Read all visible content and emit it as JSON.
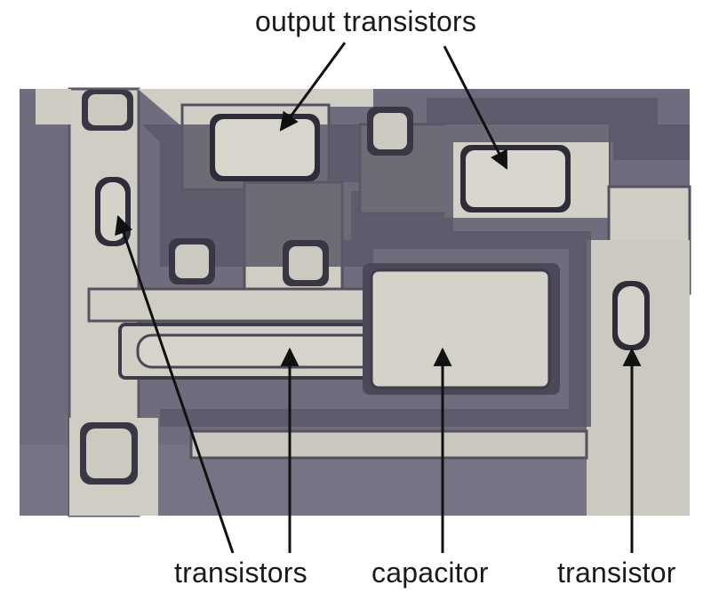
{
  "labels": {
    "output_transistors": "output transistors",
    "transistors": "transistors",
    "capacitor": "capacitor",
    "transistor": "transistor"
  },
  "colors": {
    "substrate": "#6e6b7c",
    "metal": "#cfcdc4",
    "metal_edge": "#45424f",
    "contact_dark": "#3b3846",
    "arrow": "#111111"
  }
}
